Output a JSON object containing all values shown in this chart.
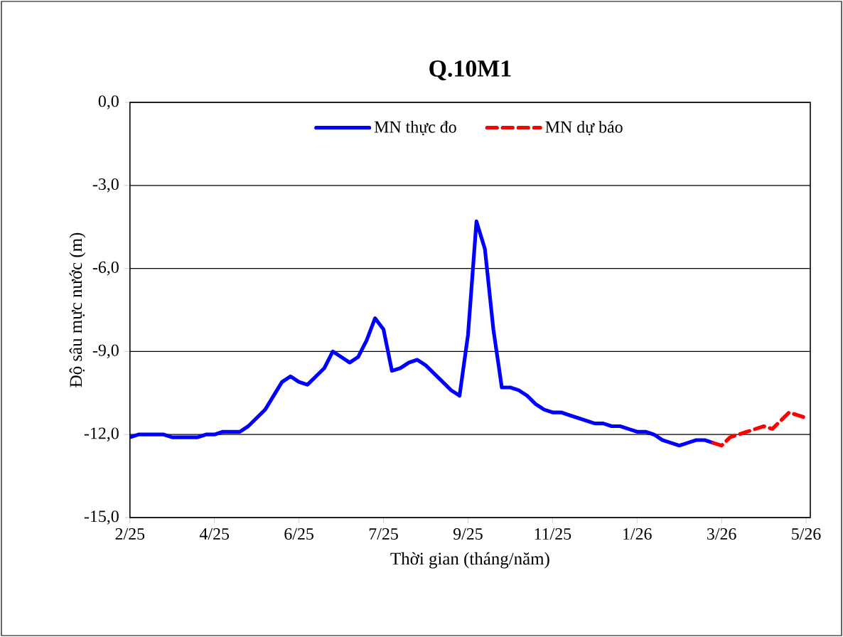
{
  "chart_data": {
    "type": "line",
    "title": "Q.10M1",
    "xlabel": "Thời gian (tháng/năm)",
    "ylabel": "Độ sâu mực nước (m)",
    "categories": [
      "2/25",
      null,
      null,
      null,
      null,
      null,
      null,
      null,
      null,
      null,
      "4/25",
      null,
      null,
      null,
      null,
      null,
      null,
      null,
      null,
      null,
      "6/25",
      null,
      null,
      null,
      null,
      null,
      null,
      null,
      null,
      null,
      "7/25",
      null,
      null,
      null,
      null,
      null,
      null,
      null,
      null,
      null,
      "9/25",
      null,
      null,
      null,
      null,
      null,
      null,
      null,
      null,
      null,
      "11/25",
      null,
      null,
      null,
      null,
      null,
      null,
      null,
      null,
      null,
      "1/26",
      null,
      null,
      null,
      null,
      null,
      null,
      null,
      null,
      null,
      "3/26",
      null,
      null,
      null,
      null,
      null,
      null,
      null,
      null,
      null,
      "5/26"
    ],
    "series": [
      {
        "name": "MN thực đo",
        "color": "#0000ff",
        "line_style": "solid",
        "values": [
          -12.1,
          -12.0,
          -12.0,
          -12.0,
          -12.0,
          -12.1,
          -12.1,
          -12.1,
          -12.1,
          -12.0,
          -12.0,
          -11.9,
          -11.9,
          -11.9,
          -11.7,
          -11.4,
          -11.1,
          -10.6,
          -10.1,
          -9.9,
          -10.1,
          -10.2,
          -9.9,
          -9.6,
          -9.0,
          -9.2,
          -9.4,
          -9.2,
          -8.6,
          -7.8,
          -8.2,
          -9.7,
          -9.6,
          -9.4,
          -9.3,
          -9.5,
          -9.8,
          -10.1,
          -10.4,
          -10.6,
          -8.4,
          -4.3,
          -5.3,
          -8.2,
          -10.3,
          -10.3,
          -10.4,
          -10.6,
          -10.9,
          -11.1,
          -11.2,
          -11.2,
          -11.3,
          -11.4,
          -11.5,
          -11.6,
          -11.6,
          -11.7,
          -11.7,
          -11.8,
          -11.9,
          -11.9,
          -12.0,
          -12.2,
          -12.3,
          -12.4,
          -12.3,
          -12.2,
          -12.2,
          -12.3,
          null,
          null,
          null,
          null,
          null,
          null,
          null,
          null,
          null,
          null,
          null
        ]
      },
      {
        "name": "MN dự báo",
        "color": "#ff0000",
        "line_style": "dashed",
        "values": [
          null,
          null,
          null,
          null,
          null,
          null,
          null,
          null,
          null,
          null,
          null,
          null,
          null,
          null,
          null,
          null,
          null,
          null,
          null,
          null,
          null,
          null,
          null,
          null,
          null,
          null,
          null,
          null,
          null,
          null,
          null,
          null,
          null,
          null,
          null,
          null,
          null,
          null,
          null,
          null,
          null,
          null,
          null,
          null,
          null,
          null,
          null,
          null,
          null,
          null,
          null,
          null,
          null,
          null,
          null,
          null,
          null,
          null,
          null,
          null,
          null,
          null,
          null,
          null,
          null,
          null,
          null,
          null,
          null,
          -12.3,
          -12.4,
          -12.1,
          -12.0,
          -11.9,
          -11.8,
          -11.7,
          -11.8,
          -11.5,
          -11.2,
          -11.3,
          -11.4
        ]
      }
    ],
    "ylim": [
      -15,
      0
    ],
    "yticks": [
      {
        "value": -15,
        "label": "-15,0"
      },
      {
        "value": -12,
        "label": "-12,0"
      },
      {
        "value": -9,
        "label": "-9,0"
      },
      {
        "value": -6,
        "label": "-6,0"
      },
      {
        "value": -3,
        "label": "-3,0"
      },
      {
        "value": 0,
        "label": "0,0"
      }
    ],
    "grid": "y",
    "legend": "top",
    "marker": "none"
  }
}
